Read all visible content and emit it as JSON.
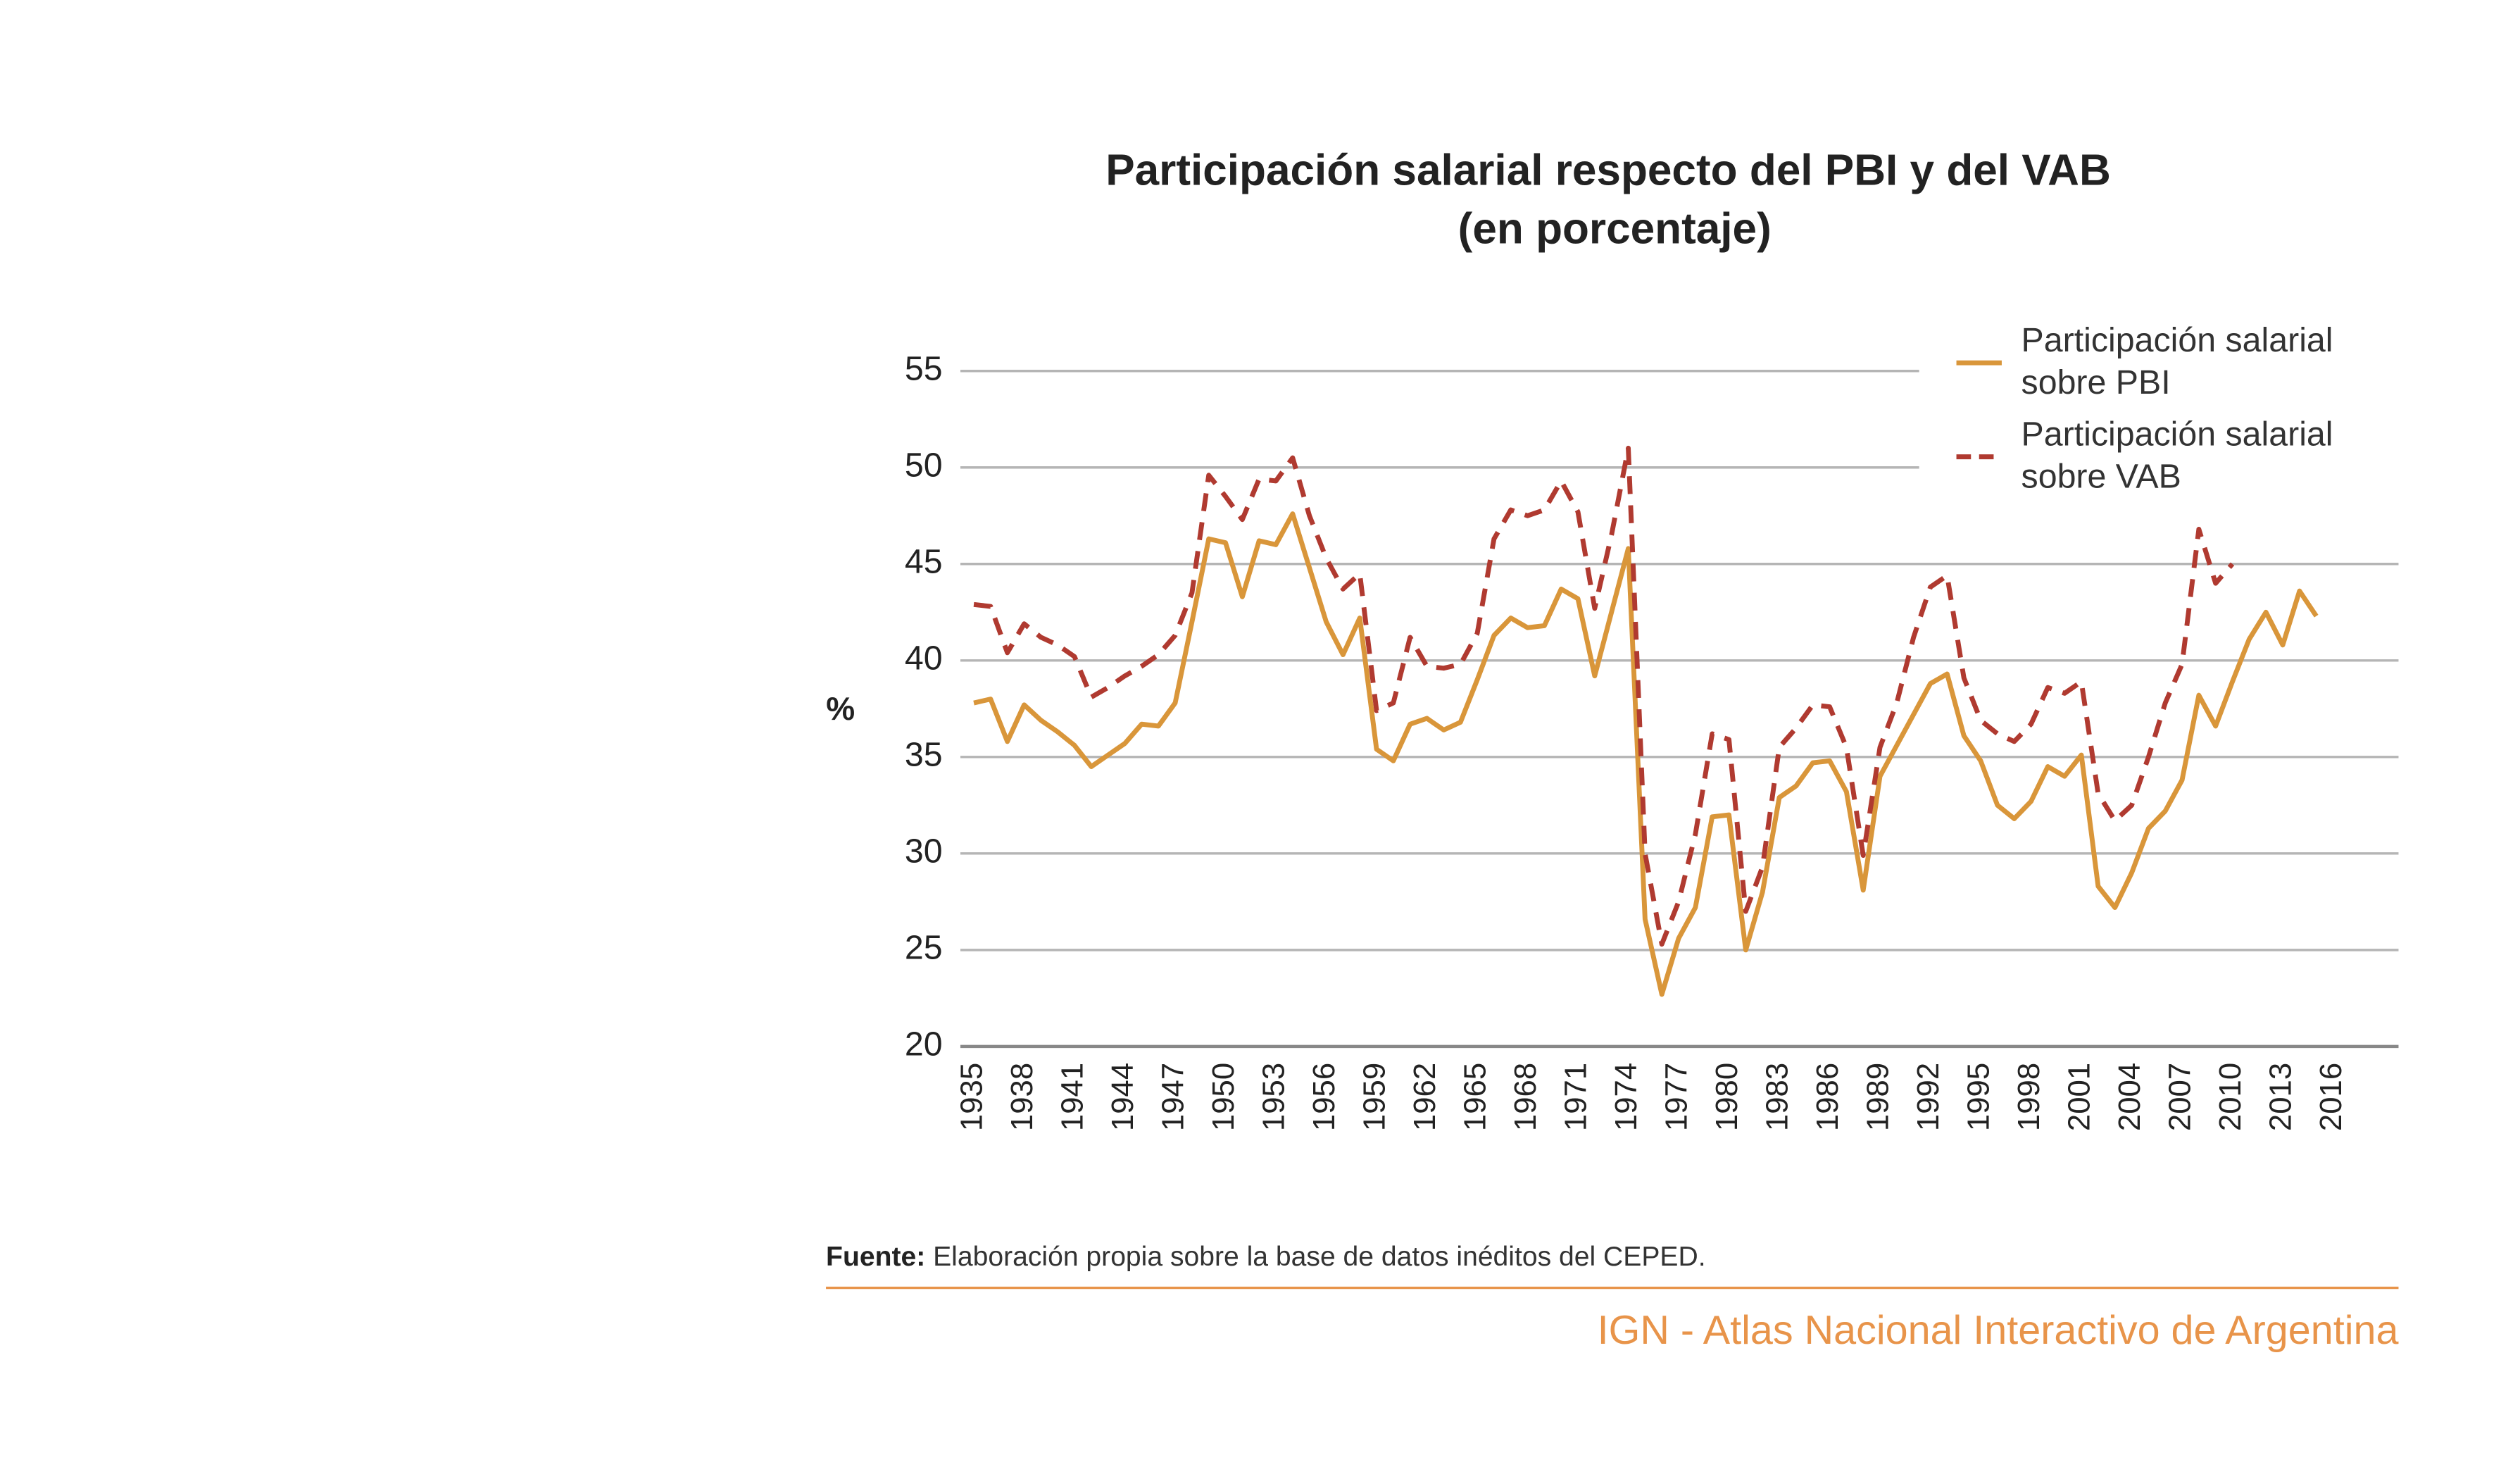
{
  "chart_data": {
    "type": "line",
    "title": "Participación salarial respecto del PBI y del VAB",
    "subtitle": "(en porcentaje)",
    "y_label": "%",
    "x": [
      1935,
      1936,
      1937,
      1938,
      1939,
      1940,
      1941,
      1942,
      1943,
      1944,
      1945,
      1946,
      1947,
      1948,
      1949,
      1950,
      1951,
      1952,
      1953,
      1954,
      1955,
      1956,
      1957,
      1958,
      1959,
      1960,
      1961,
      1962,
      1963,
      1964,
      1965,
      1966,
      1967,
      1968,
      1969,
      1970,
      1971,
      1972,
      1973,
      1974,
      1975,
      1976,
      1977,
      1978,
      1979,
      1980,
      1981,
      1982,
      1983,
      1984,
      1985,
      1986,
      1987,
      1988,
      1989,
      1990,
      1991,
      1992,
      1993,
      1994,
      1995,
      1996,
      1997,
      1998,
      1999,
      2000,
      2001,
      2002,
      2003,
      2004,
      2005,
      2006,
      2007,
      2008,
      2009,
      2010,
      2011,
      2012,
      2013,
      2014,
      2015
    ],
    "series": [
      {
        "name": "Participación salarial sobre PBI",
        "color": "#d9963a",
        "dash": false,
        "values": [
          37.8,
          38.0,
          35.8,
          37.7,
          36.9,
          36.3,
          35.6,
          34.5,
          35.1,
          35.7,
          36.7,
          36.6,
          37.8,
          42.0,
          46.3,
          46.1,
          43.3,
          46.2,
          46.0,
          47.6,
          44.8,
          42.0,
          40.3,
          42.2,
          35.4,
          34.8,
          36.7,
          37.0,
          36.4,
          36.8,
          39.0,
          41.3,
          42.2,
          41.7,
          41.8,
          43.7,
          43.2,
          39.2,
          42.5,
          45.8,
          26.6,
          22.7,
          25.6,
          27.2,
          31.9,
          32.0,
          25.0,
          28.0,
          32.9,
          33.5,
          34.7,
          34.8,
          33.2,
          28.1,
          34.0,
          35.6,
          37.2,
          38.8,
          39.3,
          36.1,
          34.8,
          32.5,
          31.8,
          32.7,
          34.5,
          34.0,
          35.1,
          28.3,
          27.2,
          29.0,
          31.3,
          32.2,
          33.8,
          38.2,
          36.6,
          38.9,
          41.1,
          42.5,
          40.8,
          43.6,
          42.3
        ]
      },
      {
        "name": "Participación salarial sobre VAB",
        "color": "#b03a30",
        "dash": true,
        "values": [
          42.9,
          42.8,
          40.4,
          41.9,
          41.2,
          40.8,
          40.2,
          38.1,
          38.6,
          39.2,
          39.7,
          40.3,
          41.3,
          43.5,
          49.6,
          48.5,
          47.3,
          49.4,
          49.3,
          50.5,
          47.5,
          45.3,
          43.7,
          44.5,
          37.4,
          37.8,
          41.2,
          39.7,
          39.6,
          39.8,
          41.4,
          46.3,
          47.8,
          47.5,
          47.8,
          49.3,
          47.7,
          42.7,
          46.5,
          51.0,
          30.0,
          25.3,
          27.5,
          31.0,
          36.2,
          35.9,
          27.0,
          29.3,
          35.5,
          36.5,
          37.7,
          37.6,
          35.5,
          29.9,
          35.5,
          37.8,
          41.2,
          43.8,
          44.4,
          39.1,
          36.9,
          36.2,
          35.8,
          36.7,
          38.6,
          38.3,
          38.9,
          33.1,
          31.7,
          32.5,
          35.0,
          37.8,
          39.8,
          46.8,
          44.0,
          45.0,
          null,
          null,
          null,
          null,
          null
        ]
      }
    ],
    "xlim": [
      1934.2,
      2019.9
    ],
    "xticks": [
      1935,
      1938,
      1941,
      1944,
      1947,
      1950,
      1953,
      1956,
      1959,
      1962,
      1965,
      1968,
      1971,
      1974,
      1977,
      1980,
      1983,
      1986,
      1989,
      1992,
      1995,
      1998,
      2001,
      2004,
      2007,
      2010,
      2013,
      2016
    ],
    "ylim": [
      20,
      55
    ],
    "yticks": [
      20,
      25,
      30,
      35,
      40,
      45,
      50,
      55
    ],
    "grid": true,
    "legend": "top-right",
    "source_label": "Fuente:",
    "source": "Elaboración propia sobre la base de datos inéditos del CEPED.",
    "footer": "IGN - Atlas Nacional Interactivo de Argentina"
  }
}
